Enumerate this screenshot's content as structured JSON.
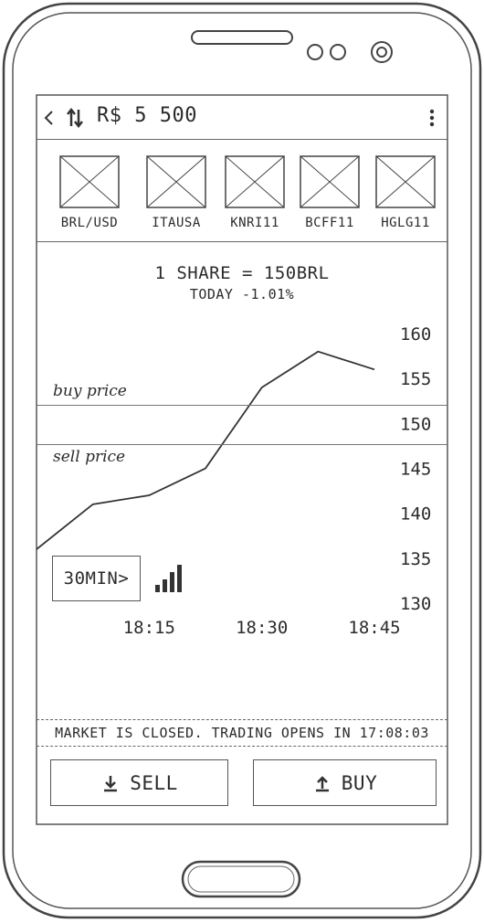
{
  "topbar": {
    "balance": "R$ 5 500",
    "back_icon": "chevron-left-icon",
    "swap_icon": "swap-vertical-icon",
    "menu_icon": "kebab-menu-icon"
  },
  "tickers": [
    {
      "label": "BRL/USD"
    },
    {
      "label": "ITAUSA"
    },
    {
      "label": "KNRI11"
    },
    {
      "label": "BCFF11"
    },
    {
      "label": "HGLG11"
    }
  ],
  "quote": {
    "share_price": "1 SHARE = 150BRL",
    "today_change": "TODAY -1.01%"
  },
  "chart_data": {
    "type": "line",
    "x": [
      "18:00",
      "18:08",
      "18:15",
      "18:22",
      "18:30",
      "18:38",
      "18:45"
    ],
    "values": [
      136,
      141,
      142,
      145,
      154,
      158,
      156
    ],
    "xticks": [
      "18:15",
      "18:30",
      "18:45"
    ],
    "yticks": [
      "160",
      "155",
      "150",
      "145",
      "140",
      "135",
      "130"
    ],
    "ylim": [
      130,
      160
    ],
    "buy_price_label": "buy price",
    "sell_price_label": "sell price"
  },
  "interval_button": "30MIN>",
  "interval_icon": "signal-bars-icon",
  "status_message": "MARKET IS CLOSED. TRADING OPENS IN 17:08:03",
  "actions": {
    "sell": "SELL",
    "buy": "BUY",
    "sell_icon": "download-arrow-icon",
    "buy_icon": "upload-arrow-icon"
  }
}
